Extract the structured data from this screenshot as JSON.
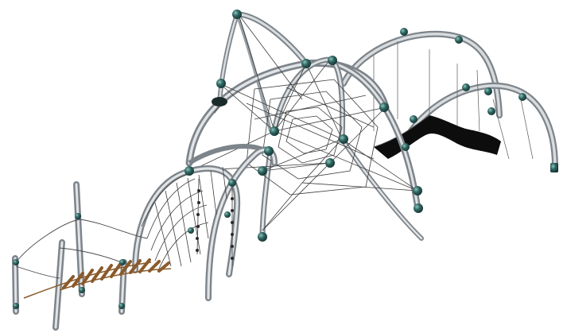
{
  "scene": {
    "subject": "playground-climbing-structure-rendering",
    "colors": {
      "background": "#ffffff",
      "pipe_light": "#e4e7ea",
      "pipe_mid": "#b7bcc1",
      "pipe_dark": "#7d848a",
      "connector": "#2f5f5c",
      "connector_highlight": "#6fa8a2",
      "rope": "#3d3d3d",
      "plank": "#8a5a2b",
      "membrane": "#0d0d0d"
    }
  }
}
